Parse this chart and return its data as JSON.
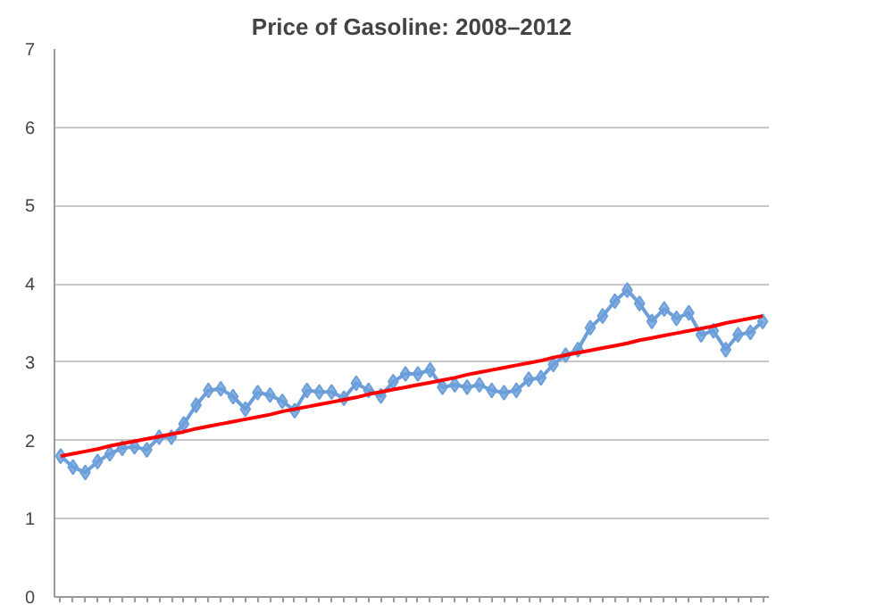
{
  "chart_data": {
    "type": "line",
    "title": "Price of Gasoline: 2008–2012",
    "marker": "diamond",
    "grid": "y",
    "tick_labels": "y",
    "categories": [
      null,
      null,
      null,
      null,
      null,
      null,
      null,
      null,
      null,
      null,
      null,
      null,
      null,
      null,
      null,
      null,
      null,
      null,
      null,
      null,
      null,
      null,
      null,
      null,
      null,
      null,
      null,
      null,
      null,
      null,
      null,
      null,
      null,
      null,
      null,
      null,
      null,
      null,
      null,
      null,
      null,
      null,
      null,
      null,
      null,
      null,
      null,
      null,
      null,
      null,
      null,
      null,
      null,
      null,
      null,
      null,
      null,
      null
    ],
    "ylim": [
      0,
      7
    ],
    "yticks": [
      0,
      1,
      2,
      3,
      4,
      5,
      6,
      7
    ],
    "series": [
      {
        "color": "#6c9fd9",
        "values": [
          1.8,
          1.66,
          1.59,
          1.73,
          1.83,
          1.9,
          1.92,
          1.88,
          2.04,
          2.04,
          2.21,
          2.45,
          2.64,
          2.66,
          2.56,
          2.4,
          2.61,
          2.58,
          2.5,
          2.38,
          2.64,
          2.62,
          2.62,
          2.54,
          2.73,
          2.64,
          2.57,
          2.75,
          2.85,
          2.85,
          2.9,
          2.68,
          2.71,
          2.68,
          2.71,
          2.64,
          2.61,
          2.64,
          2.78,
          2.8,
          2.97,
          3.09,
          3.16,
          3.44,
          3.59,
          3.78,
          3.92,
          3.75,
          3.52,
          3.68,
          3.56,
          3.63,
          3.35,
          3.4,
          3.16,
          3.35,
          3.38,
          3.52
        ]
      },
      {
        "color": "#ff0000",
        "marker": "none",
        "values": [
          1.8,
          1.83,
          1.86,
          1.89,
          1.93,
          1.96,
          1.99,
          2.02,
          2.05,
          2.08,
          2.11,
          2.15,
          2.18,
          2.21,
          2.24,
          2.27,
          2.3,
          2.33,
          2.37,
          2.4,
          2.43,
          2.46,
          2.49,
          2.52,
          2.55,
          2.59,
          2.62,
          2.65,
          2.68,
          2.71,
          2.74,
          2.77,
          2.8,
          2.84,
          2.87,
          2.9,
          2.93,
          2.96,
          2.99,
          3.02,
          3.06,
          3.09,
          3.12,
          3.15,
          3.18,
          3.21,
          3.24,
          3.28,
          3.31,
          3.34,
          3.37,
          3.4,
          3.43,
          3.46,
          3.5,
          3.53,
          3.56,
          3.59
        ]
      }
    ]
  }
}
